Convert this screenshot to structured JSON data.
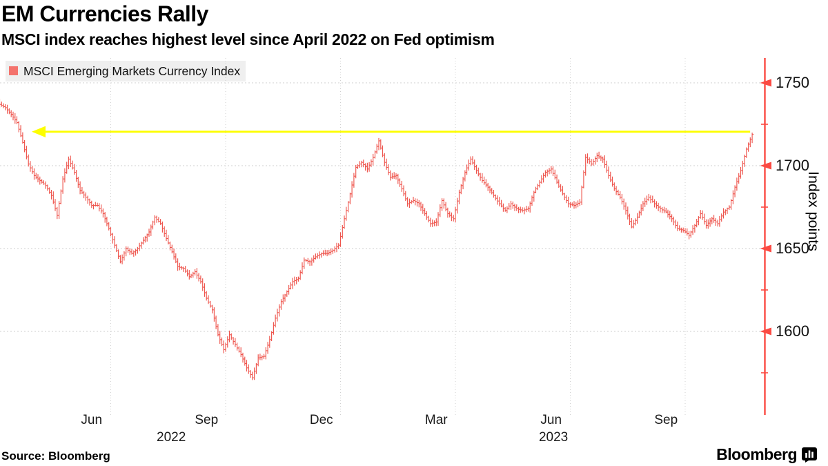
{
  "header": {
    "title": "EM Currencies Rally",
    "subtitle": "MSCI index reaches highest level since April 2022 on Fed optimism"
  },
  "legend": {
    "label": "MSCI Emerging Markets Currency Index",
    "swatch_color": "#f4736d"
  },
  "footer": {
    "source": "Source: Bloomberg",
    "brand": "Bloomberg",
    "brand_icon": "bar-chart-bubble-icon"
  },
  "colors": {
    "bars": "#ee544c",
    "axis": "#fb4a42",
    "grid": "#cfcfcf",
    "arrow": "#fdfe00",
    "legend_bg": "#efefef",
    "text": "#111111"
  },
  "chart_data": {
    "type": "line",
    "style": "daily high-low bars (HLC)",
    "title": "EM Currencies Rally",
    "subtitle": "MSCI index reaches highest level since April 2022 on Fed optimism",
    "ylabel": "Index points",
    "ylim": [
      1550,
      1765
    ],
    "yticks_major": [
      1750,
      1700,
      1650,
      1600
    ],
    "yticks_minor": [
      1725,
      1675,
      1625,
      1575
    ],
    "grid": true,
    "x_axis": {
      "unit": "months since 2022-04-01",
      "start_label": "Apr 2022",
      "end_label": "Nov 2023",
      "t_step_months": 0.15,
      "month_gridlines_t": [
        3,
        6,
        9,
        12,
        15,
        18
      ],
      "month_ticks": [
        {
          "label": "Jun",
          "t": 2.5
        },
        {
          "label": "Sep",
          "t": 5.5
        },
        {
          "label": "Dec",
          "t": 8.5
        },
        {
          "label": "Mar",
          "t": 11.5
        },
        {
          "label": "Jun",
          "t": 14.5
        },
        {
          "label": "Sep",
          "t": 17.5
        }
      ],
      "year_ticks": [
        {
          "label": "2022",
          "t": 4.58
        },
        {
          "label": "2023",
          "t": 14.56
        }
      ]
    },
    "annotation_arrow": {
      "level": 1720.5,
      "direction": "left",
      "from_t": 19.75,
      "to_t": 0.95,
      "color": "#fdfe00"
    },
    "series": [
      {
        "name": "MSCI Emerging Markets Currency Index",
        "color": "#ee544c",
        "values": [
          1745,
          1737,
          1735,
          1731,
          1726,
          1714,
          1701,
          1694,
          1691,
          1688,
          1682,
          1670,
          1692,
          1704,
          1696,
          1685,
          1681,
          1676,
          1676,
          1671,
          1662,
          1652,
          1642,
          1650,
          1647,
          1650,
          1655,
          1660,
          1669,
          1665,
          1656,
          1648,
          1639,
          1638,
          1633,
          1636,
          1630,
          1620,
          1613,
          1598,
          1589,
          1598,
          1592,
          1586,
          1578,
          1572,
          1584,
          1585,
          1595,
          1608,
          1618,
          1624,
          1630,
          1632,
          1643,
          1642,
          1645,
          1647,
          1647,
          1649,
          1652,
          1668,
          1683,
          1699,
          1702,
          1698,
          1705,
          1715,
          1702,
          1693,
          1694,
          1686,
          1677,
          1679,
          1677,
          1671,
          1665,
          1666,
          1679,
          1671,
          1668,
          1684,
          1696,
          1704,
          1697,
          1691,
          1687,
          1682,
          1677,
          1673,
          1677,
          1674,
          1673,
          1674,
          1684,
          1690,
          1696,
          1698,
          1690,
          1683,
          1677,
          1676,
          1678,
          1705,
          1701,
          1706,
          1704,
          1694,
          1686,
          1681,
          1673,
          1663,
          1669,
          1677,
          1681,
          1677,
          1674,
          1672,
          1668,
          1662,
          1661,
          1658,
          1664,
          1671,
          1664,
          1668,
          1665,
          1672,
          1675,
          1687,
          1697,
          1710,
          1719
        ]
      }
    ]
  }
}
